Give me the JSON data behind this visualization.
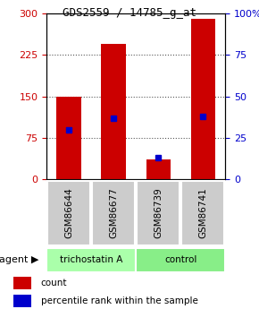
{
  "title": "GDS2559 / 14785_g_at",
  "samples": [
    "GSM86644",
    "GSM86677",
    "GSM86739",
    "GSM86741"
  ],
  "count_values": [
    150,
    245,
    35,
    290
  ],
  "percentile_values": [
    30,
    37,
    13,
    38
  ],
  "ylim_left": [
    0,
    300
  ],
  "ylim_right": [
    0,
    100
  ],
  "yticks_left": [
    0,
    75,
    150,
    225,
    300
  ],
  "yticks_right": [
    0,
    25,
    50,
    75,
    100
  ],
  "bar_color": "#cc0000",
  "percentile_color": "#0000cc",
  "agent_groups": [
    {
      "label": "trichostatin A",
      "samples": [
        0,
        1
      ],
      "color": "#aaffaa"
    },
    {
      "label": "control",
      "samples": [
        2,
        3
      ],
      "color": "#88ee88"
    }
  ],
  "agent_label": "agent",
  "legend_count_label": "count",
  "legend_percentile_label": "percentile rank within the sample",
  "bg_color": "#ffffff",
  "plot_bg_color": "#ffffff",
  "sample_box_color": "#cccccc",
  "grid_color": "#555555",
  "title_color": "#000000",
  "left_axis_color": "#cc0000",
  "right_axis_color": "#0000cc"
}
